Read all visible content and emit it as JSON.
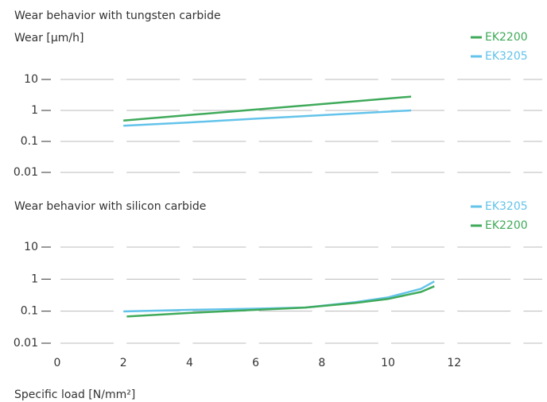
{
  "chart_data": [
    {
      "type": "line",
      "title": "Wear behavior with tungsten carbide",
      "ylabel": "Wear [µm/h]",
      "log_y": true,
      "ylim": [
        0.01,
        10
      ],
      "yticks": [
        10,
        1,
        0.1,
        0.01
      ],
      "xlim": [
        0,
        14.6
      ],
      "grid": true,
      "legend": "upper right",
      "series": [
        {
          "name": "EK2200",
          "color": "#3faa5a",
          "x": [
            2,
            4,
            6,
            8,
            10.7
          ],
          "values": [
            0.47,
            0.71,
            1.07,
            1.6,
            2.8
          ]
        },
        {
          "name": "EK3205",
          "color": "#63c3ea",
          "x": [
            2,
            4,
            6,
            8,
            10.7
          ],
          "values": [
            0.32,
            0.41,
            0.54,
            0.7,
            1.0
          ]
        }
      ]
    },
    {
      "type": "line",
      "title": "Wear behavior with silicon carbide",
      "xlabel": "Specific load [N/mm²]",
      "log_y": true,
      "ylim": [
        0.01,
        10
      ],
      "yticks": [
        10,
        1,
        0.1,
        0.01
      ],
      "xlim": [
        0,
        14.6
      ],
      "xticks": [
        0,
        2,
        4,
        6,
        8,
        10,
        12
      ],
      "grid": true,
      "legend": "upper right",
      "series": [
        {
          "name": "EK3205",
          "color": "#63c3ea",
          "x": [
            2,
            4,
            6,
            7.5,
            9,
            10,
            11,
            11.4
          ],
          "values": [
            0.098,
            0.11,
            0.12,
            0.13,
            0.19,
            0.27,
            0.5,
            0.85
          ]
        },
        {
          "name": "EK2200",
          "color": "#3faa5a",
          "x": [
            2.1,
            4,
            6,
            7.5,
            9,
            10,
            11,
            11.4
          ],
          "values": [
            0.068,
            0.088,
            0.11,
            0.13,
            0.18,
            0.24,
            0.4,
            0.6
          ]
        }
      ]
    }
  ]
}
